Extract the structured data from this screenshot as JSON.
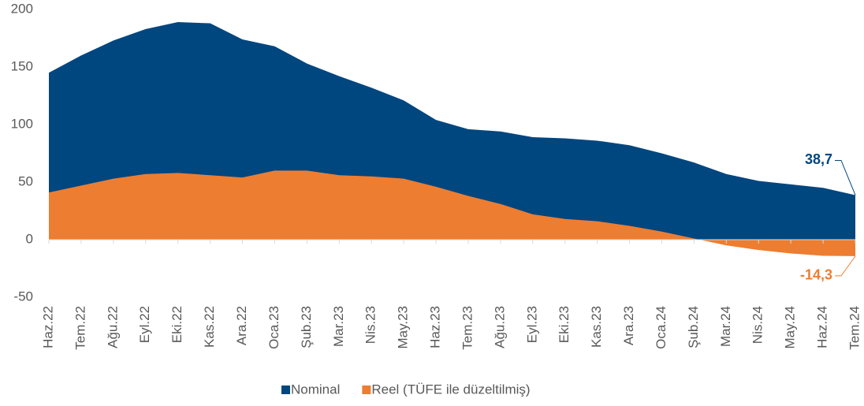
{
  "chart_data": {
    "type": "area",
    "categories": [
      "Haz.22",
      "Tem.22",
      "Ağu.22",
      "Eyl.22",
      "Eki.22",
      "Kas.22",
      "Ara.22",
      "Oca.23",
      "Şub.23",
      "Mar.23",
      "Nis.23",
      "May.23",
      "Haz.23",
      "Tem.23",
      "Ağu.23",
      "Eyl.23",
      "Eki.23",
      "Kas.23",
      "Ara.23",
      "Oca.24",
      "Şub.24",
      "Mar.24",
      "Nis.24",
      "May.24",
      "Haz.24",
      "Tem.24"
    ],
    "series": [
      {
        "name": "Nominal",
        "color": "#00467f",
        "values": [
          145,
          160,
          173,
          183,
          189,
          188,
          174,
          168,
          153,
          142,
          132,
          121,
          104,
          96,
          94,
          89,
          88,
          86,
          82,
          75,
          67,
          57,
          51,
          48,
          45,
          38.7
        ],
        "value_labels": [
          null,
          null,
          null,
          null,
          null,
          null,
          null,
          null,
          null,
          null,
          null,
          null,
          null,
          null,
          null,
          null,
          null,
          null,
          null,
          null,
          null,
          null,
          null,
          null,
          null,
          "38,7"
        ]
      },
      {
        "name": "Reel (TÜFE ile düzeltilmiş)",
        "color": "#ed7d31",
        "values": [
          41,
          47,
          53,
          57,
          58,
          56,
          54,
          60,
          60,
          56,
          55,
          53,
          46,
          38,
          31,
          22,
          18,
          16,
          12,
          7,
          1,
          -5,
          -9,
          -12,
          -14,
          -14.3
        ],
        "value_labels": [
          null,
          null,
          null,
          null,
          null,
          null,
          null,
          null,
          null,
          null,
          null,
          null,
          null,
          null,
          null,
          null,
          null,
          null,
          null,
          null,
          null,
          null,
          null,
          null,
          null,
          "-14,3"
        ]
      }
    ],
    "ylim": [
      -50,
      200
    ],
    "yticks": [
      -50,
      0,
      50,
      100,
      150,
      200
    ],
    "grid": false,
    "legend": "bottom"
  }
}
